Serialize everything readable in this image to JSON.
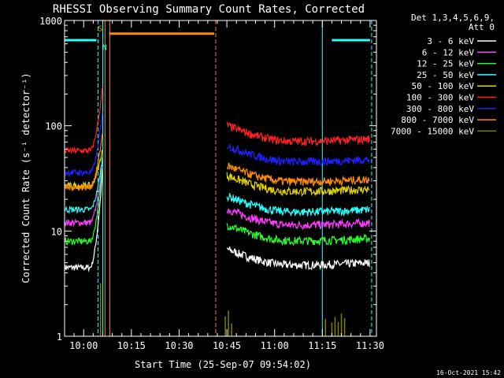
{
  "chart_data": {
    "type": "line",
    "title": "RHESSI Observing Summary Count Rates, Corrected",
    "xlabel": "Start Time (25-Sep-07 09:54:02)",
    "ylabel": "Corrected Count Rate (s⁻¹ detector⁻¹)",
    "yscale": "log",
    "ylim": [
      1,
      1000
    ],
    "xlim_minutes": [
      0,
      98
    ],
    "xticks": [
      {
        "m": 6,
        "label": "10:00"
      },
      {
        "m": 21,
        "label": "10:15"
      },
      {
        "m": 36,
        "label": "10:30"
      },
      {
        "m": 51,
        "label": "10:45"
      },
      {
        "m": 66,
        "label": "11:00"
      },
      {
        "m": 81,
        "label": "11:15"
      },
      {
        "m": 96,
        "label": "11:30"
      }
    ],
    "yticks": [
      {
        "v": 1,
        "label": "1"
      },
      {
        "v": 10,
        "label": "10"
      },
      {
        "v": 100,
        "label": "100"
      },
      {
        "v": 1000,
        "label": "1000"
      }
    ],
    "legend": {
      "placement": "right",
      "header": [
        "Det 1,3,4,5,6,9,",
        "Att 0"
      ],
      "entries": [
        {
          "label": "3 - 6 keV",
          "color": "#ffffff"
        },
        {
          "label": "6 - 12 keV",
          "color": "#ff3cff"
        },
        {
          "label": "12 - 25 keV",
          "color": "#28ff28"
        },
        {
          "label": "25 - 50 keV",
          "color": "#28ffff"
        },
        {
          "label": "50 - 100 keV",
          "color": "#e6d200"
        },
        {
          "label": "100 - 300 keV",
          "color": "#ff2020"
        },
        {
          "label": "300 - 800 keV",
          "color": "#2020ff"
        },
        {
          "label": "800 - 7000 keV",
          "color": "#ff8c00"
        },
        {
          "label": "7000 - 15000 keV",
          "color": "#808000"
        }
      ]
    },
    "segment_1_minutes": [
      0,
      12
    ],
    "segment_2_minutes": [
      51,
      96
    ],
    "series": [
      {
        "name": "3 - 6 keV",
        "color": "#ffffff",
        "level1": 4.5,
        "level2": 5.0,
        "rise_end": 40
      },
      {
        "name": "6 - 12 keV",
        "color": "#ff3cff",
        "level1": 12,
        "level2": 12,
        "rise_end": 48
      },
      {
        "name": "12 - 25 keV",
        "color": "#28ff28",
        "level1": 8,
        "level2": 8.5,
        "rise_end": 44
      },
      {
        "name": "25 - 50 keV",
        "color": "#28ffff",
        "level1": 16,
        "level2": 16,
        "rise_end": 52
      },
      {
        "name": "50 - 100 keV",
        "color": "#e6d200",
        "level1": 27,
        "level2": 25,
        "rise_end": 62
      },
      {
        "name": "100 - 300 keV",
        "color": "#ff2020",
        "level1": 58,
        "level2": 75,
        "rise_end": 250
      },
      {
        "name": "300 - 800 keV",
        "color": "#2020ff",
        "level1": 36,
        "level2": 48,
        "rise_end": 140
      },
      {
        "name": "800 - 7000 keV",
        "color": "#ff8c00",
        "level1": 26,
        "level2": 31,
        "rise_end": 90
      }
    ],
    "saa_spikes_minutes": [
      50.5,
      51.5,
      52.5,
      82,
      84,
      85,
      86,
      87,
      88
    ],
    "markers": [
      {
        "kind": "saa_bar",
        "color": "#28ffff",
        "from": 0,
        "to": 10,
        "value": 650
      },
      {
        "kind": "saa_bar",
        "color": "#28ffff",
        "from": 84,
        "to": 96,
        "value": 650
      },
      {
        "kind": "night_bar",
        "color": "#ff8c00",
        "from": 14,
        "to": 47,
        "value": 750
      },
      {
        "kind": "vline_dashed",
        "color": "#28ffff",
        "m": 10.5
      },
      {
        "kind": "vline_solid",
        "color": "#28ffff",
        "m": 12
      },
      {
        "kind": "vline_solid",
        "color": "#ff8c00",
        "m": 12.7
      },
      {
        "kind": "vline_solid",
        "color": "#ff8c00",
        "m": 14.2
      },
      {
        "kind": "vline_dashed",
        "color": "#ff8c00",
        "m": 47.5
      },
      {
        "kind": "vline_solid",
        "color": "#28ffff",
        "m": 81
      },
      {
        "kind": "vline_dashed",
        "color": "#28ffff",
        "m": 96.5
      }
    ],
    "marker_letters": [
      {
        "text": "S",
        "color": "#ff8c00",
        "m": 11.2,
        "value": 850
      },
      {
        "text": "N",
        "color": "#28ffff",
        "m": 12.6,
        "value": 560
      }
    ]
  },
  "footer": {
    "timestamp": "16-Oct-2021 15:42"
  }
}
